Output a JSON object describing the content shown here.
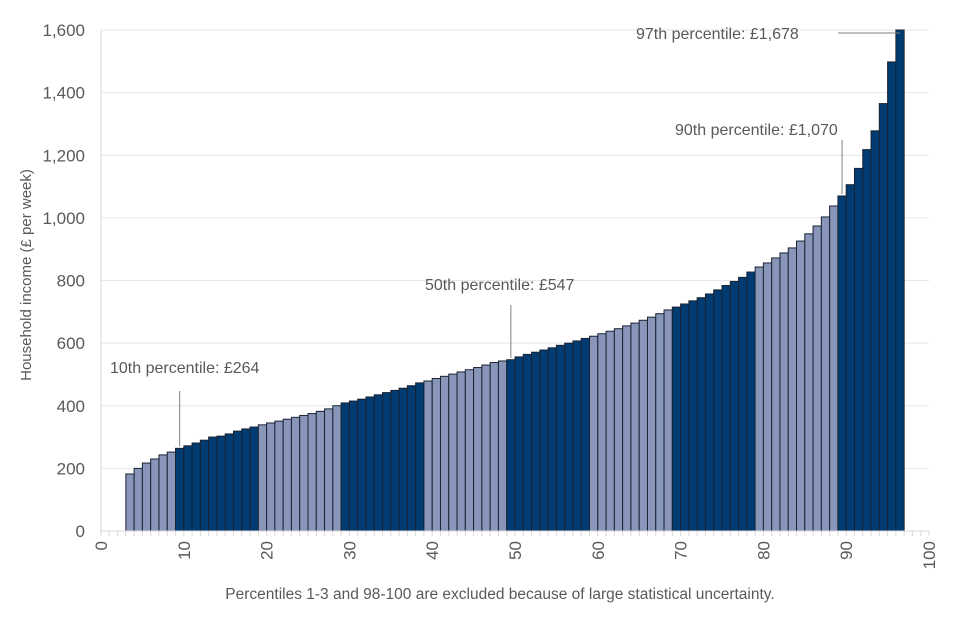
{
  "chart_data": {
    "type": "bar",
    "title": "",
    "xlabel": "Percentiles 1-3 and 98-100 are excluded because of large statistical uncertainty.",
    "ylabel": "Household income (£ per week)",
    "xlim": [
      0,
      100
    ],
    "ylim": [
      0,
      1600
    ],
    "yticks": [
      "0",
      "200",
      "400",
      "600",
      "800",
      "1,000",
      "1,200",
      "1,400",
      "1,600"
    ],
    "ytick_values": [
      0,
      200,
      400,
      600,
      800,
      1000,
      1200,
      1400,
      1600
    ],
    "xticks": [
      "0",
      "10",
      "20",
      "30",
      "40",
      "50",
      "60",
      "70",
      "80",
      "90",
      "100"
    ],
    "xtick_values": [
      0,
      10,
      20,
      30,
      40,
      50,
      60,
      70,
      80,
      90,
      100
    ],
    "grid": true,
    "colors": {
      "light": "#8896b9",
      "dark": "#003c71",
      "outline": "#1a2233",
      "grid": "#e6e6e6",
      "text": "#595959"
    },
    "percentiles": [
      4,
      5,
      6,
      7,
      8,
      9,
      10,
      11,
      12,
      13,
      14,
      15,
      16,
      17,
      18,
      19,
      20,
      21,
      22,
      23,
      24,
      25,
      26,
      27,
      28,
      29,
      30,
      31,
      32,
      33,
      34,
      35,
      36,
      37,
      38,
      39,
      40,
      41,
      42,
      43,
      44,
      45,
      46,
      47,
      48,
      49,
      50,
      51,
      52,
      53,
      54,
      55,
      56,
      57,
      58,
      59,
      60,
      61,
      62,
      63,
      64,
      65,
      66,
      67,
      68,
      69,
      70,
      71,
      72,
      73,
      74,
      75,
      76,
      77,
      78,
      79,
      80,
      81,
      82,
      83,
      84,
      85,
      86,
      87,
      88,
      89,
      90,
      91,
      92,
      93,
      94,
      95,
      96,
      97
    ],
    "values": [
      182,
      200,
      217,
      230,
      243,
      252,
      264,
      272,
      281,
      290,
      300,
      303,
      310,
      319,
      326,
      332,
      339,
      345,
      351,
      357,
      363,
      369,
      375,
      382,
      390,
      400,
      409,
      415,
      421,
      428,
      435,
      442,
      449,
      456,
      464,
      473,
      479,
      487,
      494,
      501,
      508,
      515,
      522,
      530,
      538,
      543,
      547,
      556,
      564,
      571,
      578,
      585,
      593,
      600,
      607,
      615,
      622,
      630,
      638,
      646,
      655,
      664,
      673,
      683,
      694,
      706,
      715,
      725,
      735,
      745,
      757,
      770,
      784,
      797,
      810,
      827,
      843,
      856,
      872,
      888,
      904,
      926,
      949,
      974,
      1003,
      1038,
      1070,
      1106,
      1158,
      1218,
      1278,
      1365,
      1498,
      1678
    ],
    "shade": [
      "light",
      "light",
      "light",
      "light",
      "light",
      "light",
      "dark",
      "dark",
      "dark",
      "dark",
      "dark",
      "dark",
      "dark",
      "dark",
      "dark",
      "dark",
      "light",
      "light",
      "light",
      "light",
      "light",
      "light",
      "light",
      "light",
      "light",
      "light",
      "dark",
      "dark",
      "dark",
      "dark",
      "dark",
      "dark",
      "dark",
      "dark",
      "dark",
      "dark",
      "light",
      "light",
      "light",
      "light",
      "light",
      "light",
      "light",
      "light",
      "light",
      "light",
      "dark",
      "dark",
      "dark",
      "dark",
      "dark",
      "dark",
      "dark",
      "dark",
      "dark",
      "dark",
      "light",
      "light",
      "light",
      "light",
      "light",
      "light",
      "light",
      "light",
      "light",
      "light",
      "dark",
      "dark",
      "dark",
      "dark",
      "dark",
      "dark",
      "dark",
      "dark",
      "dark",
      "dark",
      "light",
      "light",
      "light",
      "light",
      "light",
      "light",
      "light",
      "light",
      "light",
      "light",
      "dark",
      "dark",
      "dark",
      "dark",
      "dark",
      "dark",
      "dark",
      "dark"
    ],
    "annotations": [
      {
        "text": "10th percentile: £264",
        "percentile": 10,
        "value": 264
      },
      {
        "text": "50th percentile: £547",
        "percentile": 50,
        "value": 547
      },
      {
        "text": "90th percentile: £1,070",
        "percentile": 90,
        "value": 1070
      },
      {
        "text": "97th percentile: £1,678",
        "percentile": 97,
        "value": 1678
      }
    ]
  }
}
